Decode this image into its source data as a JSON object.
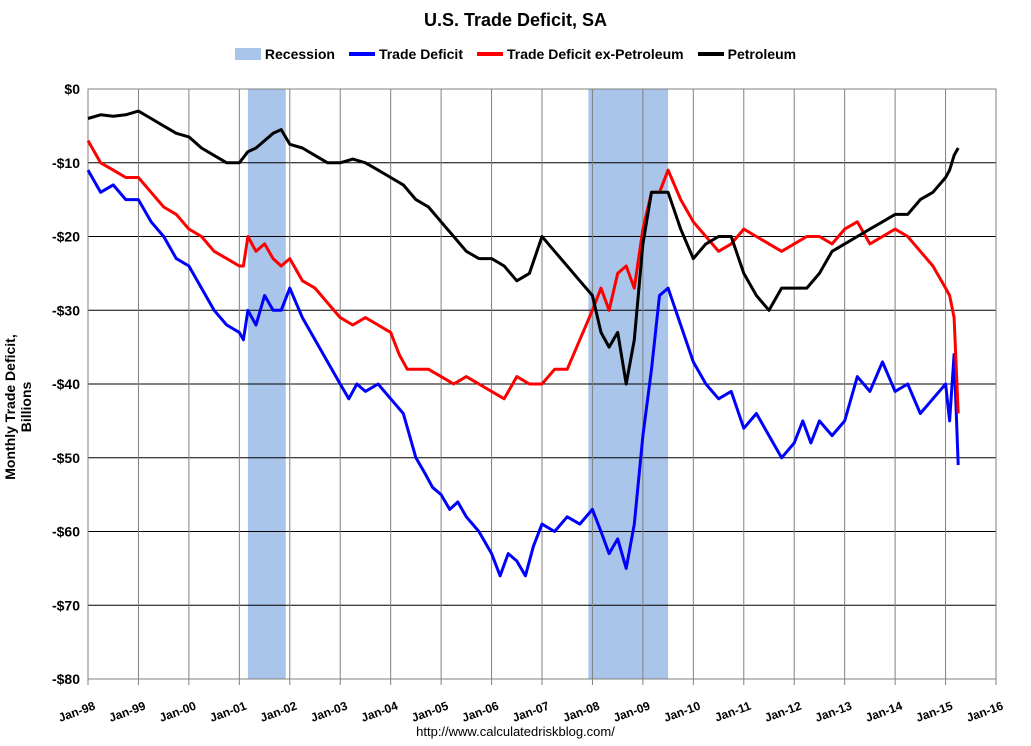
{
  "chart_data": {
    "type": "line",
    "title": "U.S. Trade Deficit, SA",
    "ylabel": "Monthly Trade Deficit, Billions",
    "source": "http://www.calculatedriskblog.com/",
    "ylim": [
      -80,
      0
    ],
    "xlim": [
      1998.0,
      2016.0
    ],
    "y_ticks": [
      {
        "value": 0,
        "label": "$0"
      },
      {
        "value": -10,
        "label": "-$10"
      },
      {
        "value": -20,
        "label": "-$20"
      },
      {
        "value": -30,
        "label": "-$30"
      },
      {
        "value": -40,
        "label": "-$40"
      },
      {
        "value": -50,
        "label": "-$50"
      },
      {
        "value": -60,
        "label": "-$60"
      },
      {
        "value": -70,
        "label": "-$70"
      },
      {
        "value": -80,
        "label": "-$80"
      }
    ],
    "x_ticks": [
      {
        "value": 1998,
        "label": "Jan-98"
      },
      {
        "value": 1999,
        "label": "Jan-99"
      },
      {
        "value": 2000,
        "label": "Jan-00"
      },
      {
        "value": 2001,
        "label": "Jan-01"
      },
      {
        "value": 2002,
        "label": "Jan-02"
      },
      {
        "value": 2003,
        "label": "Jan-03"
      },
      {
        "value": 2004,
        "label": "Jan-04"
      },
      {
        "value": 2005,
        "label": "Jan-05"
      },
      {
        "value": 2006,
        "label": "Jan-06"
      },
      {
        "value": 2007,
        "label": "Jan-07"
      },
      {
        "value": 2008,
        "label": "Jan-08"
      },
      {
        "value": 2009,
        "label": "Jan-09"
      },
      {
        "value": 2010,
        "label": "Jan-10"
      },
      {
        "value": 2011,
        "label": "Jan-11"
      },
      {
        "value": 2012,
        "label": "Jan-12"
      },
      {
        "value": 2013,
        "label": "Jan-13"
      },
      {
        "value": 2014,
        "label": "Jan-14"
      },
      {
        "value": 2015,
        "label": "Jan-15"
      },
      {
        "value": 2016,
        "label": "Jan-16"
      }
    ],
    "recessions": [
      {
        "start": 2001.17,
        "end": 2001.92
      },
      {
        "start": 2007.92,
        "end": 2009.5
      }
    ],
    "grid": "horizontal",
    "legend": "top-center",
    "series": [
      {
        "name": "Trade Deficit",
        "color": "#0000ff",
        "x": [
          1998.0,
          1998.25,
          1998.5,
          1998.75,
          1999.0,
          1999.25,
          1999.5,
          1999.75,
          2000.0,
          2000.25,
          2000.5,
          2000.75,
          2001.0,
          2001.08,
          2001.17,
          2001.33,
          2001.5,
          2001.67,
          2001.83,
          2002.0,
          2002.25,
          2002.5,
          2002.75,
          2003.0,
          2003.17,
          2003.33,
          2003.5,
          2003.75,
          2004.0,
          2004.25,
          2004.5,
          2004.67,
          2004.83,
          2005.0,
          2005.17,
          2005.33,
          2005.5,
          2005.75,
          2006.0,
          2006.17,
          2006.33,
          2006.5,
          2006.67,
          2006.83,
          2007.0,
          2007.25,
          2007.5,
          2007.75,
          2008.0,
          2008.17,
          2008.33,
          2008.5,
          2008.67,
          2008.83,
          2009.0,
          2009.17,
          2009.33,
          2009.5,
          2009.75,
          2010.0,
          2010.25,
          2010.5,
          2010.75,
          2011.0,
          2011.25,
          2011.5,
          2011.75,
          2012.0,
          2012.17,
          2012.33,
          2012.5,
          2012.75,
          2013.0,
          2013.25,
          2013.5,
          2013.75,
          2014.0,
          2014.25,
          2014.5,
          2014.75,
          2015.0,
          2015.08,
          2015.17,
          2015.25
        ],
        "values": [
          -11,
          -14,
          -13,
          -15,
          -15,
          -18,
          -20,
          -23,
          -24,
          -27,
          -30,
          -32,
          -33,
          -34,
          -30,
          -32,
          -28,
          -30,
          -30,
          -27,
          -31,
          -34,
          -37,
          -40,
          -42,
          -40,
          -41,
          -40,
          -42,
          -44,
          -50,
          -52,
          -54,
          -55,
          -57,
          -56,
          -58,
          -60,
          -63,
          -66,
          -63,
          -64,
          -66,
          -62,
          -59,
          -60,
          -58,
          -59,
          -57,
          -60,
          -63,
          -61,
          -65,
          -59,
          -47,
          -38,
          -28,
          -27,
          -32,
          -37,
          -40,
          -42,
          -41,
          -46,
          -44,
          -47,
          -50,
          -48,
          -45,
          -48,
          -45,
          -47,
          -45,
          -39,
          -41,
          -37,
          -41,
          -40,
          -44,
          -42,
          -40,
          -45,
          -36,
          -51
        ]
      },
      {
        "name": "Trade Deficit ex-Petroleum",
        "color": "#ff0000",
        "x": [
          1998.0,
          1998.25,
          1998.5,
          1998.75,
          1999.0,
          1999.25,
          1999.5,
          1999.75,
          2000.0,
          2000.25,
          2000.5,
          2000.75,
          2001.0,
          2001.08,
          2001.17,
          2001.33,
          2001.5,
          2001.67,
          2001.83,
          2002.0,
          2002.25,
          2002.5,
          2002.75,
          2003.0,
          2003.25,
          2003.5,
          2003.75,
          2004.0,
          2004.17,
          2004.33,
          2004.5,
          2004.75,
          2005.0,
          2005.25,
          2005.5,
          2005.75,
          2006.0,
          2006.25,
          2006.5,
          2006.75,
          2007.0,
          2007.25,
          2007.5,
          2007.75,
          2008.0,
          2008.17,
          2008.33,
          2008.5,
          2008.67,
          2008.83,
          2009.0,
          2009.17,
          2009.33,
          2009.5,
          2009.75,
          2010.0,
          2010.25,
          2010.5,
          2010.75,
          2011.0,
          2011.25,
          2011.5,
          2011.75,
          2012.0,
          2012.25,
          2012.5,
          2012.75,
          2013.0,
          2013.25,
          2013.5,
          2013.75,
          2014.0,
          2014.25,
          2014.5,
          2014.75,
          2015.0,
          2015.08,
          2015.17,
          2015.25
        ],
        "values": [
          -7,
          -10,
          -11,
          -12,
          -12,
          -14,
          -16,
          -17,
          -19,
          -20,
          -22,
          -23,
          -24,
          -24,
          -20,
          -22,
          -21,
          -23,
          -24,
          -23,
          -26,
          -27,
          -29,
          -31,
          -32,
          -31,
          -32,
          -33,
          -36,
          -38,
          -38,
          -38,
          -39,
          -40,
          -39,
          -40,
          -41,
          -42,
          -39,
          -40,
          -40,
          -38,
          -38,
          -34,
          -30,
          -27,
          -30,
          -25,
          -24,
          -27,
          -19,
          -14,
          -14,
          -11,
          -15,
          -18,
          -20,
          -22,
          -21,
          -19,
          -20,
          -21,
          -22,
          -21,
          -20,
          -20,
          -21,
          -19,
          -18,
          -21,
          -20,
          -19,
          -20,
          -22,
          -24,
          -27,
          -28,
          -31,
          -44
        ]
      },
      {
        "name": "Petroleum",
        "color": "#000000",
        "x": [
          1998.0,
          1998.25,
          1998.5,
          1998.75,
          1999.0,
          1999.25,
          1999.5,
          1999.75,
          2000.0,
          2000.25,
          2000.5,
          2000.75,
          2001.0,
          2001.17,
          2001.33,
          2001.5,
          2001.67,
          2001.83,
          2002.0,
          2002.25,
          2002.5,
          2002.75,
          2003.0,
          2003.25,
          2003.5,
          2003.75,
          2004.0,
          2004.25,
          2004.5,
          2004.75,
          2005.0,
          2005.25,
          2005.5,
          2005.75,
          2006.0,
          2006.25,
          2006.5,
          2006.75,
          2007.0,
          2007.25,
          2007.5,
          2007.75,
          2008.0,
          2008.17,
          2008.33,
          2008.5,
          2008.67,
          2008.83,
          2009.0,
          2009.17,
          2009.33,
          2009.5,
          2009.75,
          2010.0,
          2010.25,
          2010.5,
          2010.75,
          2011.0,
          2011.25,
          2011.5,
          2011.75,
          2012.0,
          2012.25,
          2012.5,
          2012.75,
          2013.0,
          2013.25,
          2013.5,
          2013.75,
          2014.0,
          2014.25,
          2014.5,
          2014.75,
          2015.0,
          2015.08,
          2015.17,
          2015.25
        ],
        "values": [
          -4,
          -3.5,
          -3.7,
          -3.5,
          -3,
          -4,
          -5,
          -6,
          -6.5,
          -8,
          -9,
          -10,
          -10,
          -8.5,
          -8,
          -7,
          -6,
          -5.5,
          -7.5,
          -8,
          -9,
          -10,
          -10,
          -9.5,
          -10,
          -11,
          -12,
          -13,
          -15,
          -16,
          -18,
          -20,
          -22,
          -23,
          -23,
          -24,
          -26,
          -25,
          -20,
          -22,
          -24,
          -26,
          -28,
          -33,
          -35,
          -33,
          -40,
          -34,
          -21,
          -14,
          -14,
          -14,
          -19,
          -23,
          -21,
          -20,
          -20,
          -25,
          -28,
          -30,
          -27,
          -27,
          -27,
          -25,
          -22,
          -21,
          -20,
          -19,
          -18,
          -17,
          -17,
          -15,
          -14,
          -12,
          -11,
          -9,
          -8
        ]
      }
    ]
  },
  "legend": {
    "recession_label": "Recession",
    "items": [
      "Trade Deficit",
      "Trade Deficit ex-Petroleum",
      "Petroleum"
    ]
  }
}
